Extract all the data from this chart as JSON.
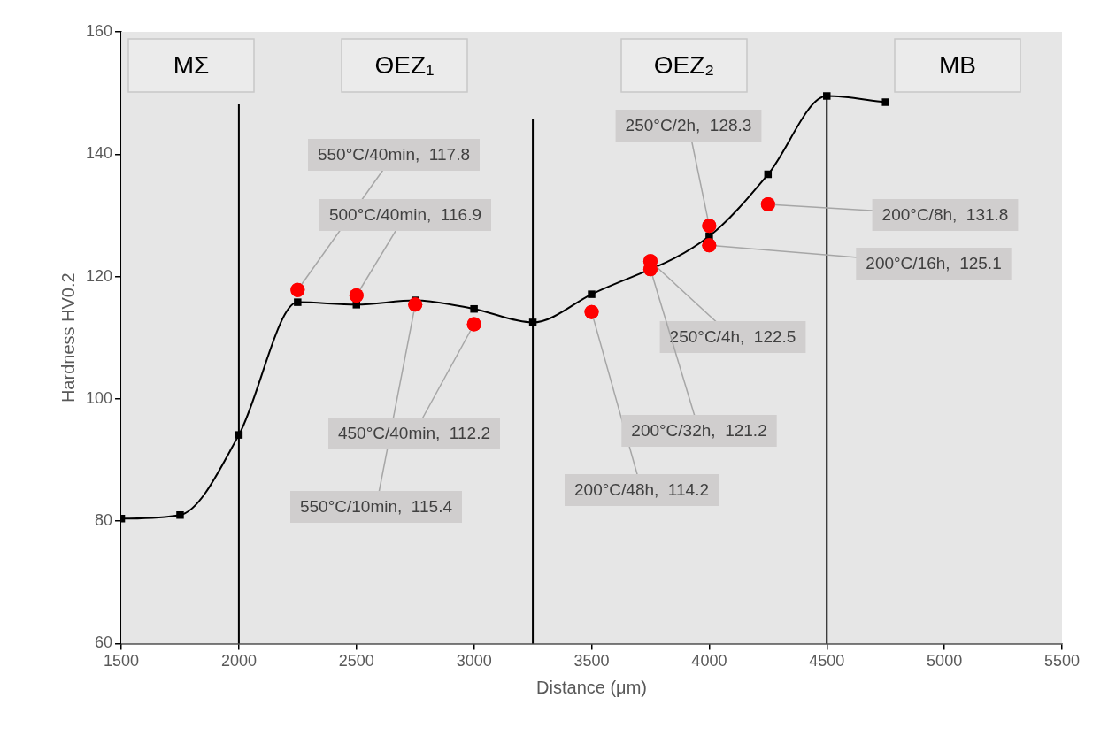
{
  "chart_data": {
    "type": "line",
    "xlabel": "Distance (μm)",
    "ylabel": "Hardness HV0.2",
    "xlim": [
      1500,
      5500
    ],
    "xticks": [
      1500,
      2000,
      2500,
      3000,
      3500,
      4000,
      4500,
      5000,
      5500
    ],
    "ylim": [
      60,
      160
    ],
    "yticks": [
      60,
      80,
      100,
      120,
      140,
      160
    ],
    "grid": false,
    "legend": false,
    "series": [
      {
        "color": "#000000",
        "marker": "square",
        "x": [
          1500,
          1750,
          2000,
          2250,
          2500,
          2750,
          3000,
          3250,
          3500,
          3750,
          4000,
          4250,
          4500,
          4750
        ],
        "values": [
          80.4,
          81.0,
          94.1,
          115.8,
          115.4,
          116.1,
          114.7,
          112.5,
          117.1,
          null,
          126.6,
          136.7,
          149.5,
          148.5
        ]
      },
      {
        "type": "scatter",
        "color": "#ff0000",
        "marker": "circle",
        "x": [
          2250,
          2500,
          2750,
          3000,
          3500,
          3750,
          3750,
          4000,
          4000,
          4250
        ],
        "values": [
          117.8,
          116.9,
          115.4,
          112.2,
          114.2,
          122.5,
          121.2,
          128.3,
          125.1,
          131.8
        ],
        "value_labels": [
          "550°C/40min,  117.8",
          "500°C/40min,  116.9",
          "550°C/10min,  115.4",
          "450°C/40min,  112.2",
          "200°C/48h,  114.2",
          "250°C/4h,  122.5",
          "200°C/32h,  121.2",
          "250°C/2h,  128.3",
          "200°C/16h,  125.1",
          "200°C/8h,  131.8"
        ]
      }
    ],
    "ref_lines": [
      {
        "axis": "x",
        "value": 2000,
        "color": "#000000"
      },
      {
        "axis": "x",
        "value": 3250,
        "color": "#000000"
      },
      {
        "axis": "x",
        "value": 4500,
        "color": "#000000"
      }
    ],
    "annotations": [
      "ΜΣ",
      "ΘΕΖ₁",
      "ΘΕΖ₂",
      "ΜΒ"
    ]
  }
}
